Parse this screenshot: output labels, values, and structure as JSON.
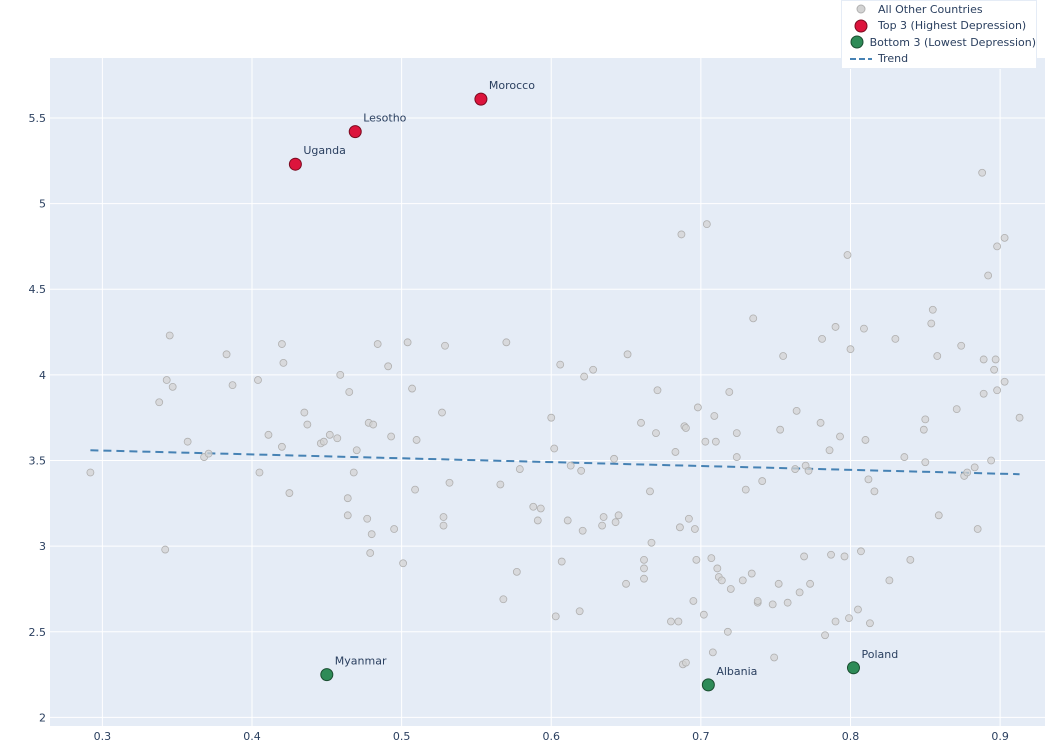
{
  "chart_data": {
    "type": "scatter",
    "title": "",
    "xlabel": "",
    "ylabel": "",
    "xlim": [
      0.265,
      0.93
    ],
    "ylim": [
      1.95,
      5.85
    ],
    "x_ticks": [
      0.3,
      0.4,
      0.5,
      0.6,
      0.7,
      0.8,
      0.9
    ],
    "x_tick_labels": [
      "0.3",
      "0.4",
      "0.5",
      "0.6",
      "0.7",
      "0.8",
      "0.9"
    ],
    "y_ticks": [
      2,
      2.5,
      3,
      3.5,
      4,
      4.5,
      5,
      5.5
    ],
    "y_tick_labels": [
      "2",
      "2.5",
      "3",
      "3.5",
      "4",
      "4.5",
      "5",
      "5.5"
    ],
    "grid": true,
    "legend_position": "top-right",
    "colors": {
      "plot_bg": "#e5ecf6",
      "grid": "#ffffff",
      "others_fill": "#d3d3d3",
      "others_edge": "#b0b0b0",
      "top_fill": "#dc143c",
      "top_edge": "#7a0a1f",
      "bottom_fill": "#2e8b57",
      "bottom_edge": "#1a4d30",
      "trend": "#4682b4",
      "text": "#2a3f5f"
    },
    "series": [
      {
        "name": "All Other Countries",
        "points": [
          [
            0.292,
            3.43
          ],
          [
            0.338,
            3.84
          ],
          [
            0.342,
            2.98
          ],
          [
            0.343,
            3.97
          ],
          [
            0.345,
            4.23
          ],
          [
            0.347,
            3.93
          ],
          [
            0.357,
            3.61
          ],
          [
            0.368,
            3.52
          ],
          [
            0.371,
            3.54
          ],
          [
            0.383,
            4.12
          ],
          [
            0.387,
            3.94
          ],
          [
            0.404,
            3.97
          ],
          [
            0.405,
            3.43
          ],
          [
            0.411,
            3.65
          ],
          [
            0.42,
            3.58
          ],
          [
            0.42,
            4.18
          ],
          [
            0.421,
            4.07
          ],
          [
            0.425,
            3.31
          ],
          [
            0.435,
            3.78
          ],
          [
            0.437,
            3.71
          ],
          [
            0.446,
            3.6
          ],
          [
            0.448,
            3.61
          ],
          [
            0.452,
            3.65
          ],
          [
            0.457,
            3.63
          ],
          [
            0.459,
            4.0
          ],
          [
            0.464,
            3.28
          ],
          [
            0.464,
            3.18
          ],
          [
            0.465,
            3.9
          ],
          [
            0.468,
            3.43
          ],
          [
            0.47,
            3.56
          ],
          [
            0.477,
            3.16
          ],
          [
            0.478,
            3.72
          ],
          [
            0.479,
            2.96
          ],
          [
            0.48,
            3.07
          ],
          [
            0.481,
            3.71
          ],
          [
            0.484,
            4.18
          ],
          [
            0.491,
            4.05
          ],
          [
            0.493,
            3.64
          ],
          [
            0.495,
            3.1
          ],
          [
            0.501,
            2.9
          ],
          [
            0.504,
            4.19
          ],
          [
            0.507,
            3.92
          ],
          [
            0.509,
            3.33
          ],
          [
            0.51,
            3.62
          ],
          [
            0.527,
            3.78
          ],
          [
            0.528,
            3.17
          ],
          [
            0.528,
            3.12
          ],
          [
            0.529,
            4.17
          ],
          [
            0.532,
            3.37
          ],
          [
            0.566,
            3.36
          ],
          [
            0.568,
            2.69
          ],
          [
            0.57,
            4.19
          ],
          [
            0.577,
            2.85
          ],
          [
            0.579,
            3.45
          ],
          [
            0.588,
            3.23
          ],
          [
            0.591,
            3.15
          ],
          [
            0.593,
            3.22
          ],
          [
            0.6,
            3.75
          ],
          [
            0.602,
            3.57
          ],
          [
            0.603,
            2.59
          ],
          [
            0.606,
            4.06
          ],
          [
            0.607,
            2.91
          ],
          [
            0.611,
            3.15
          ],
          [
            0.613,
            3.47
          ],
          [
            0.619,
            2.62
          ],
          [
            0.62,
            3.44
          ],
          [
            0.621,
            3.09
          ],
          [
            0.622,
            3.99
          ],
          [
            0.628,
            4.03
          ],
          [
            0.634,
            3.12
          ],
          [
            0.635,
            3.17
          ],
          [
            0.642,
            3.51
          ],
          [
            0.643,
            3.14
          ],
          [
            0.645,
            3.18
          ],
          [
            0.65,
            2.78
          ],
          [
            0.651,
            4.12
          ],
          [
            0.66,
            3.72
          ],
          [
            0.662,
            2.92
          ],
          [
            0.662,
            2.87
          ],
          [
            0.662,
            2.81
          ],
          [
            0.666,
            3.32
          ],
          [
            0.667,
            3.02
          ],
          [
            0.67,
            3.66
          ],
          [
            0.671,
            3.91
          ],
          [
            0.68,
            2.56
          ],
          [
            0.683,
            3.55
          ],
          [
            0.685,
            2.56
          ],
          [
            0.686,
            3.11
          ],
          [
            0.687,
            4.82
          ],
          [
            0.688,
            2.31
          ],
          [
            0.689,
            3.7
          ],
          [
            0.69,
            3.69
          ],
          [
            0.69,
            2.32
          ],
          [
            0.692,
            3.16
          ],
          [
            0.695,
            2.68
          ],
          [
            0.696,
            3.1
          ],
          [
            0.697,
            2.92
          ],
          [
            0.698,
            3.81
          ],
          [
            0.702,
            2.6
          ],
          [
            0.703,
            3.61
          ],
          [
            0.704,
            4.88
          ],
          [
            0.707,
            2.93
          ],
          [
            0.708,
            2.38
          ],
          [
            0.709,
            3.76
          ],
          [
            0.71,
            3.61
          ],
          [
            0.711,
            2.87
          ],
          [
            0.712,
            2.82
          ],
          [
            0.714,
            2.8
          ],
          [
            0.718,
            2.5
          ],
          [
            0.719,
            3.9
          ],
          [
            0.72,
            2.75
          ],
          [
            0.724,
            3.66
          ],
          [
            0.724,
            3.52
          ],
          [
            0.728,
            2.8
          ],
          [
            0.73,
            3.33
          ],
          [
            0.734,
            2.84
          ],
          [
            0.735,
            4.33
          ],
          [
            0.738,
            2.67
          ],
          [
            0.738,
            2.68
          ],
          [
            0.741,
            3.38
          ],
          [
            0.748,
            2.66
          ],
          [
            0.749,
            2.35
          ],
          [
            0.752,
            2.78
          ],
          [
            0.753,
            3.68
          ],
          [
            0.755,
            4.11
          ],
          [
            0.758,
            2.67
          ],
          [
            0.763,
            3.45
          ],
          [
            0.764,
            3.79
          ],
          [
            0.766,
            2.73
          ],
          [
            0.769,
            2.94
          ],
          [
            0.77,
            3.47
          ],
          [
            0.772,
            3.44
          ],
          [
            0.773,
            2.78
          ],
          [
            0.78,
            3.72
          ],
          [
            0.781,
            4.21
          ],
          [
            0.783,
            2.48
          ],
          [
            0.786,
            3.56
          ],
          [
            0.787,
            2.95
          ],
          [
            0.79,
            4.28
          ],
          [
            0.79,
            2.56
          ],
          [
            0.793,
            3.64
          ],
          [
            0.796,
            2.94
          ],
          [
            0.798,
            4.7
          ],
          [
            0.799,
            2.58
          ],
          [
            0.8,
            4.15
          ],
          [
            0.805,
            2.63
          ],
          [
            0.807,
            2.97
          ],
          [
            0.809,
            4.27
          ],
          [
            0.81,
            3.62
          ],
          [
            0.812,
            3.39
          ],
          [
            0.813,
            2.55
          ],
          [
            0.816,
            3.32
          ],
          [
            0.826,
            2.8
          ],
          [
            0.83,
            4.21
          ],
          [
            0.836,
            3.52
          ],
          [
            0.84,
            2.92
          ],
          [
            0.849,
            3.68
          ],
          [
            0.85,
            3.74
          ],
          [
            0.85,
            3.49
          ],
          [
            0.854,
            4.3
          ],
          [
            0.855,
            4.38
          ],
          [
            0.858,
            4.11
          ],
          [
            0.859,
            3.18
          ],
          [
            0.871,
            3.8
          ],
          [
            0.874,
            4.17
          ],
          [
            0.876,
            3.41
          ],
          [
            0.878,
            3.43
          ],
          [
            0.883,
            3.46
          ],
          [
            0.885,
            3.1
          ],
          [
            0.888,
            5.18
          ],
          [
            0.889,
            4.09
          ],
          [
            0.889,
            3.89
          ],
          [
            0.892,
            4.58
          ],
          [
            0.894,
            3.5
          ],
          [
            0.896,
            4.03
          ],
          [
            0.897,
            4.09
          ],
          [
            0.898,
            3.91
          ],
          [
            0.898,
            4.75
          ],
          [
            0.903,
            4.8
          ],
          [
            0.903,
            3.96
          ],
          [
            0.913,
            3.75
          ]
        ]
      },
      {
        "name": "Top 3 (Highest Depression)",
        "points": [
          {
            "x": 0.429,
            "y": 5.23,
            "label": "Uganda"
          },
          {
            "x": 0.469,
            "y": 5.42,
            "label": "Lesotho"
          },
          {
            "x": 0.553,
            "y": 5.61,
            "label": "Morocco"
          }
        ]
      },
      {
        "name": "Bottom 3 (Lowest Depression)",
        "points": [
          {
            "x": 0.45,
            "y": 2.25,
            "label": "Myanmar"
          },
          {
            "x": 0.705,
            "y": 2.19,
            "label": "Albania"
          },
          {
            "x": 0.802,
            "y": 2.29,
            "label": "Poland"
          }
        ]
      },
      {
        "name": "Trend",
        "x": [
          0.292,
          0.913
        ],
        "y": [
          3.56,
          3.42
        ]
      }
    ],
    "legend": [
      {
        "label": "All Other Countries",
        "swatch": "others"
      },
      {
        "label": "Top 3 (Highest Depression)",
        "swatch": "top"
      },
      {
        "label": "Bottom 3 (Lowest Depression)",
        "swatch": "bottom"
      },
      {
        "label": "Trend",
        "swatch": "trend"
      }
    ]
  }
}
